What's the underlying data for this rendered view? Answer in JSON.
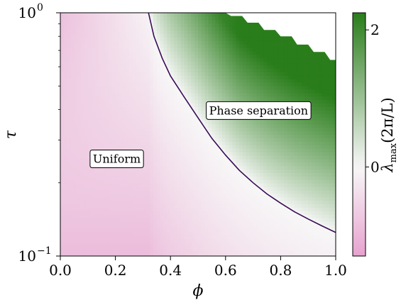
{
  "chart_data": {
    "type": "heatmap",
    "title": "",
    "xlabel": "ϕ",
    "ylabel": "τ",
    "xlim": [
      0.0,
      1.0
    ],
    "ylim": [
      0.1,
      1.0
    ],
    "yscale": "log",
    "x_ticks": [
      {
        "value": 0.0,
        "label": "0.0"
      },
      {
        "value": 0.2,
        "label": "0.2"
      },
      {
        "value": 0.4,
        "label": "0.4"
      },
      {
        "value": 0.6,
        "label": "0.6"
      },
      {
        "value": 0.8,
        "label": "0.8"
      },
      {
        "value": 1.0,
        "label": "1.0"
      }
    ],
    "y_ticks": [
      {
        "value": 0.1,
        "base": "10",
        "exponent": "−1"
      },
      {
        "value": 1.0,
        "base": "10",
        "exponent": "0"
      }
    ],
    "colorbar": {
      "label": "λmax(2π/L)",
      "label_main": "λ",
      "label_sub": "max",
      "label_rest": "(2π/L)",
      "min": -1.3,
      "max": 2.25,
      "ticks": [
        {
          "value": 0,
          "label": "0"
        },
        {
          "value": 2,
          "label": "2"
        }
      ],
      "colors": {
        "negative": "#e7a2cf",
        "zero": "#f7f7f7",
        "positive": "#2a7d1b"
      }
    },
    "boundary_curve": {
      "color": "#3a0b57",
      "points": [
        {
          "x": 0.32,
          "y": 1.0
        },
        {
          "x": 0.34,
          "y": 0.8
        },
        {
          "x": 0.37,
          "y": 0.65
        },
        {
          "x": 0.4,
          "y": 0.55
        },
        {
          "x": 0.45,
          "y": 0.45
        },
        {
          "x": 0.5,
          "y": 0.37
        },
        {
          "x": 0.55,
          "y": 0.305
        },
        {
          "x": 0.6,
          "y": 0.26
        },
        {
          "x": 0.65,
          "y": 0.225
        },
        {
          "x": 0.7,
          "y": 0.2
        },
        {
          "x": 0.75,
          "y": 0.18
        },
        {
          "x": 0.8,
          "y": 0.165
        },
        {
          "x": 0.85,
          "y": 0.152
        },
        {
          "x": 0.9,
          "y": 0.142
        },
        {
          "x": 0.95,
          "y": 0.133
        },
        {
          "x": 1.0,
          "y": 0.125
        }
      ]
    },
    "annotations": [
      {
        "text": "Uniform",
        "x": 0.205,
        "y": 0.25
      },
      {
        "text": "Phase separation",
        "x": 0.72,
        "y": 0.395
      }
    ]
  }
}
